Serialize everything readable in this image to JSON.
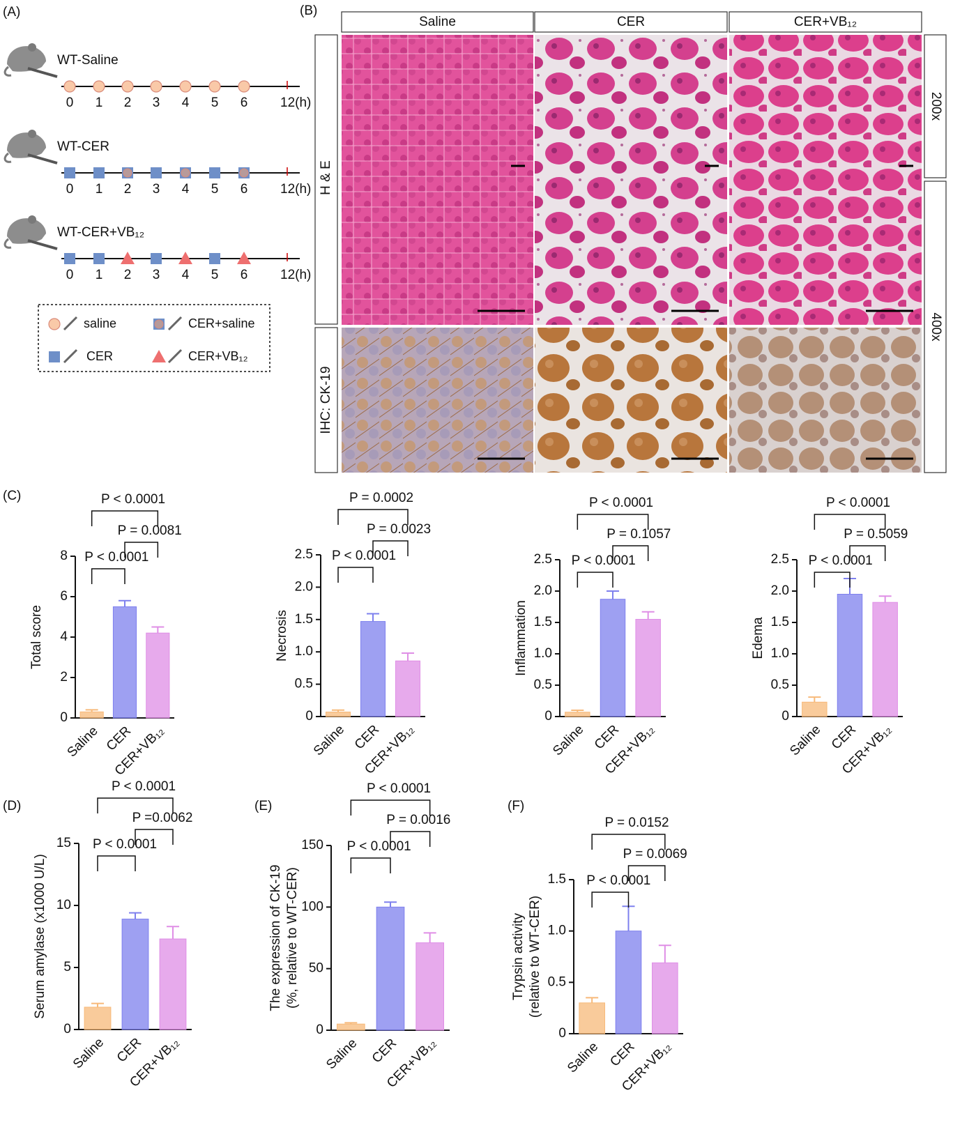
{
  "panel_labels": [
    "(A)",
    "(B)",
    "(C)",
    "(D)",
    "(E)",
    "(F)"
  ],
  "panel_A": {
    "groups": [
      "WT-Saline",
      "WT-CER",
      "WT-CER+VB₁₂"
    ],
    "timepoints": [
      "0",
      "1",
      "2",
      "3",
      "4",
      "5",
      "6",
      "12(h)"
    ],
    "legend": [
      "saline",
      "CER+saline",
      "CER",
      "CER+VB₁₂"
    ]
  },
  "panel_B": {
    "columns": [
      "Saline",
      "CER",
      "CER+VB₁₂"
    ],
    "stains": [
      "H & E",
      "IHC: CK-19"
    ],
    "magnifications": [
      "200x",
      "400x"
    ]
  },
  "chart_data": [
    {
      "type": "bar",
      "ylabel": [
        "Total score"
      ],
      "categories": [
        "Saline",
        "CER",
        "CER+VB₁₂"
      ],
      "values": [
        0.3,
        5.5,
        4.2
      ],
      "errors": [
        0.1,
        0.3,
        0.3
      ],
      "colors": [
        "#f7b979",
        "#7e80ee",
        "#df8ee6"
      ],
      "ylim": [
        0,
        8
      ],
      "yticks": [
        0,
        2,
        4,
        6,
        8
      ],
      "annotations": [
        {
          "text": "P < 0.0001",
          "from": "Saline",
          "to": "CER+VB₁₂"
        },
        {
          "text": "P = 0.0081",
          "from": "CER",
          "to": "CER+VB₁₂"
        },
        {
          "text": "P < 0.0001",
          "from": "Saline",
          "to": "CER"
        }
      ]
    },
    {
      "type": "bar",
      "ylabel": [
        "Necrosis"
      ],
      "categories": [
        "Saline",
        "CER",
        "CER+VB₁₂"
      ],
      "values": [
        0.07,
        1.47,
        0.86
      ],
      "errors": [
        0.03,
        0.12,
        0.12
      ],
      "colors": [
        "#f7b979",
        "#7e80ee",
        "#df8ee6"
      ],
      "ylim": [
        0,
        2.5
      ],
      "yticks": [
        0,
        0.5,
        {
          "value": 1,
          "label": "1.0"
        },
        1.5,
        {
          "value": 2,
          "label": "2.0"
        },
        2.5
      ],
      "annotations": [
        {
          "text": "P = 0.0002",
          "from": "Saline",
          "to": "CER+VB₁₂"
        },
        {
          "text": "P = 0.0023",
          "from": "CER",
          "to": "CER+VB₁₂"
        },
        {
          "text": "P < 0.0001",
          "from": "Saline",
          "to": "CER"
        }
      ]
    },
    {
      "type": "bar",
      "ylabel": [
        "Inflammation"
      ],
      "categories": [
        "Saline",
        "CER",
        "CER+VB₁₂"
      ],
      "values": [
        0.07,
        1.87,
        1.55
      ],
      "errors": [
        0.03,
        0.13,
        0.12
      ],
      "colors": [
        "#f7b979",
        "#7e80ee",
        "#df8ee6"
      ],
      "ylim": [
        0,
        2.5
      ],
      "yticks": [
        0,
        0.5,
        {
          "value": 1,
          "label": "1.0"
        },
        1.5,
        {
          "value": 2,
          "label": "2.0"
        },
        2.5
      ],
      "annotations": [
        {
          "text": "P < 0.0001",
          "from": "Saline",
          "to": "CER+VB₁₂"
        },
        {
          "text": "P = 0.1057",
          "from": "CER",
          "to": "CER+VB₁₂"
        },
        {
          "text": "P < 0.0001",
          "from": "Saline",
          "to": "CER"
        }
      ]
    },
    {
      "type": "bar",
      "ylabel": [
        "Edema"
      ],
      "categories": [
        "Saline",
        "CER",
        "CER+VB₁₂"
      ],
      "values": [
        0.23,
        1.95,
        1.82
      ],
      "errors": [
        0.08,
        0.25,
        0.1
      ],
      "colors": [
        "#f7b979",
        "#7e80ee",
        "#df8ee6"
      ],
      "ylim": [
        0,
        2.5
      ],
      "yticks": [
        0,
        0.5,
        {
          "value": 1,
          "label": "1.0"
        },
        1.5,
        {
          "value": 2,
          "label": "2.0"
        },
        2.5
      ],
      "annotations": [
        {
          "text": "P < 0.0001",
          "from": "Saline",
          "to": "CER+VB₁₂"
        },
        {
          "text": "P = 0.5059",
          "from": "CER",
          "to": "CER+VB₁₂"
        },
        {
          "text": "P < 0.0001",
          "from": "Saline",
          "to": "CER"
        }
      ]
    },
    {
      "type": "bar",
      "ylabel": [
        "Serum amylase (x1000 U/L)"
      ],
      "categories": [
        "Saline",
        "CER",
        "CER+VB₁₂"
      ],
      "values": [
        1.8,
        8.9,
        7.3
      ],
      "errors": [
        0.3,
        0.5,
        1.0
      ],
      "colors": [
        "#f7b979",
        "#7e80ee",
        "#df8ee6"
      ],
      "ylim": [
        0,
        15
      ],
      "yticks": [
        0,
        5,
        10,
        15
      ],
      "annotations": [
        {
          "text": "P < 0.0001",
          "from": "Saline",
          "to": "CER+VB₁₂"
        },
        {
          "text": "P =0.0062",
          "from": "CER",
          "to": "CER+VB₁₂"
        },
        {
          "text": "P < 0.0001",
          "from": "Saline",
          "to": "CER"
        }
      ]
    },
    {
      "type": "bar",
      "ylabel": [
        "The expression of CK-19",
        "(%, relative to WT-CER)"
      ],
      "categories": [
        "Saline",
        "CER",
        "CER+VB₁₂"
      ],
      "values": [
        5,
        100,
        71
      ],
      "errors": [
        1,
        4,
        8
      ],
      "colors": [
        "#f7b979",
        "#7e80ee",
        "#df8ee6"
      ],
      "ylim": [
        0,
        150
      ],
      "yticks": [
        0,
        50,
        100,
        150
      ],
      "annotations": [
        {
          "text": "P < 0.0001",
          "from": "Saline",
          "to": "CER+VB₁₂"
        },
        {
          "text": "P = 0.0016",
          "from": "CER",
          "to": "CER+VB₁₂"
        },
        {
          "text": "P < 0.0001",
          "from": "Saline",
          "to": "CER"
        }
      ]
    },
    {
      "type": "bar",
      "ylabel": [
        "Trypsin activity",
        "(relative to WT-CER)"
      ],
      "categories": [
        "Saline",
        "CER",
        "CER+VB₁₂"
      ],
      "values": [
        0.3,
        1.0,
        0.69
      ],
      "errors": [
        0.05,
        0.24,
        0.17
      ],
      "colors": [
        "#f7b979",
        "#7e80ee",
        "#df8ee6"
      ],
      "ylim": [
        0,
        1.5
      ],
      "yticks": [
        0,
        0.5,
        {
          "value": 1,
          "label": "1.0"
        },
        1.5
      ],
      "annotations": [
        {
          "text": "P = 0.0152",
          "from": "Saline",
          "to": "CER+VB₁₂"
        },
        {
          "text": "P = 0.0069",
          "from": "CER",
          "to": "CER+VB₁₂"
        },
        {
          "text": "P < 0.0001",
          "from": "Saline",
          "to": "CER"
        }
      ]
    }
  ]
}
